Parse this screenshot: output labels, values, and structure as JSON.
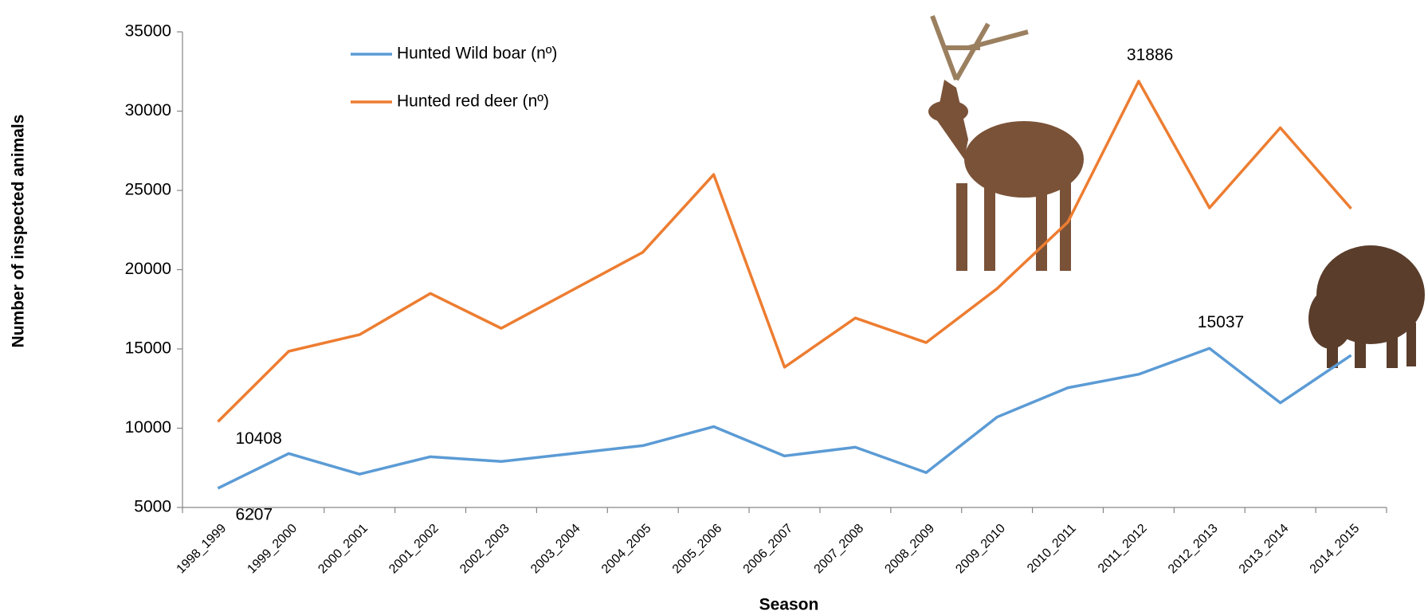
{
  "chart_data": {
    "type": "line",
    "x_label": "Season",
    "y_label": "Number of inspected animals",
    "categories": [
      "1998_1999",
      "1999_2000",
      "2000_2001",
      "2001_2002",
      "2002_2003",
      "2003_2004",
      "2004_2005",
      "2005_2006",
      "2006_2007",
      "2007_2008",
      "2008_2009",
      "2009_2010",
      "2010_2011",
      "2011_2012",
      "2012_2013",
      "2013_2014",
      "2014_2015"
    ],
    "series": [
      {
        "name": "Hunted Wild boar (nº)",
        "color": "#5b9bd5",
        "values": [
          6207,
          8400,
          7100,
          8200,
          7900,
          8400,
          8900,
          10100,
          8250,
          8800,
          7200,
          10700,
          12550,
          13400,
          15037,
          11600,
          14600
        ]
      },
      {
        "name": "Hunted red deer (nº)",
        "color": "#ed7d31",
        "values": [
          10408,
          14850,
          15900,
          18500,
          16300,
          18700,
          21100,
          26000,
          13850,
          16950,
          15400,
          18800,
          23000,
          31886,
          23900,
          28950,
          23850
        ]
      }
    ],
    "labeled_points": [
      {
        "series": 0,
        "index": 0
      },
      {
        "series": 1,
        "index": 0
      },
      {
        "series": 1,
        "index": 13
      },
      {
        "series": 0,
        "index": 14
      }
    ],
    "ylim": [
      5000,
      35000
    ],
    "yticks": [
      5000,
      10000,
      15000,
      20000,
      25000,
      30000,
      35000
    ],
    "legend": "top-left"
  }
}
